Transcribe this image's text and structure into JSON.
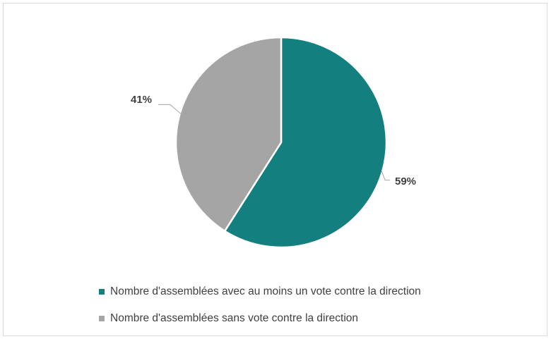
{
  "chart_data": {
    "type": "pie",
    "slices": [
      {
        "label": "Nombre d'assemblées avec au moins un vote contre la direction",
        "value": 59,
        "display": "59%",
        "color": "#137f7f"
      },
      {
        "label": "Nombre d'assemblées sans vote contre la direction",
        "value": 41,
        "display": "41%",
        "color": "#a5a5a5"
      }
    ],
    "legend_position": "bottom"
  }
}
